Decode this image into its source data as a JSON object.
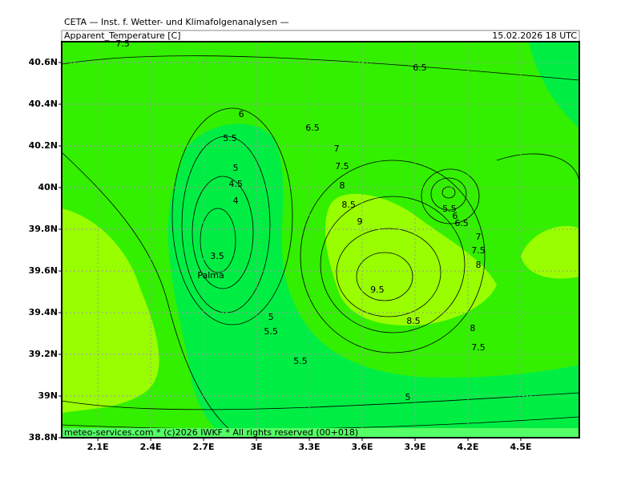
{
  "header": {
    "source": "CETA — Inst. f. Wetter- und Klimafolgenanalysen —",
    "title": "Apparent_Temperature [C]",
    "valid": "15.02.2026 18 UTC"
  },
  "map": {
    "xlim": [
      1.895,
      4.832
    ],
    "ylim": [
      38.8,
      40.7
    ],
    "xticks": [
      {
        "value": 2.1,
        "label": "2.1E"
      },
      {
        "value": 2.4,
        "label": "2.4E"
      },
      {
        "value": 2.7,
        "label": "2.7E"
      },
      {
        "value": 3.0,
        "label": "3E"
      },
      {
        "value": 3.3,
        "label": "3.3E"
      },
      {
        "value": 3.6,
        "label": "3.6E"
      },
      {
        "value": 3.9,
        "label": "3.9E"
      },
      {
        "value": 4.2,
        "label": "4.2E"
      },
      {
        "value": 4.5,
        "label": "4.5E"
      }
    ],
    "yticks": [
      {
        "value": 38.8,
        "label": "38.8N"
      },
      {
        "value": 39.0,
        "label": "39N"
      },
      {
        "value": 39.2,
        "label": "39.2N"
      },
      {
        "value": 39.4,
        "label": "39.4N"
      },
      {
        "value": 39.6,
        "label": "39.6N"
      },
      {
        "value": 39.8,
        "label": "39.8N"
      },
      {
        "value": 40.0,
        "label": "40N"
      },
      {
        "value": 40.2,
        "label": "40.2N"
      },
      {
        "value": 40.4,
        "label": "40.4N"
      },
      {
        "value": 40.6,
        "label": "40.6N"
      }
    ],
    "contour_labels": [
      {
        "text": "7.5",
        "lon": 2.241,
        "lat": 40.688
      },
      {
        "text": "6.5",
        "lon": 3.927,
        "lat": 40.573
      },
      {
        "text": "6",
        "lon": 2.914,
        "lat": 40.35
      },
      {
        "text": "6.5",
        "lon": 3.318,
        "lat": 40.285
      },
      {
        "text": "5.5",
        "lon": 2.85,
        "lat": 40.235
      },
      {
        "text": "7",
        "lon": 3.455,
        "lat": 40.185
      },
      {
        "text": "5",
        "lon": 2.882,
        "lat": 40.092
      },
      {
        "text": "7.5",
        "lon": 3.486,
        "lat": 40.1
      },
      {
        "text": "4.5",
        "lon": 2.882,
        "lat": 40.015
      },
      {
        "text": "8",
        "lon": 3.486,
        "lat": 40.008
      },
      {
        "text": "4",
        "lon": 2.882,
        "lat": 39.935
      },
      {
        "text": "8.5",
        "lon": 3.523,
        "lat": 39.915
      },
      {
        "text": "5.5",
        "lon": 4.095,
        "lat": 39.896
      },
      {
        "text": "6",
        "lon": 4.127,
        "lat": 39.862
      },
      {
        "text": "9",
        "lon": 3.586,
        "lat": 39.835
      },
      {
        "text": "6.5",
        "lon": 4.164,
        "lat": 39.827
      },
      {
        "text": "7",
        "lon": 4.259,
        "lat": 39.762
      },
      {
        "text": "7.5",
        "lon": 4.259,
        "lat": 39.696
      },
      {
        "text": "3.5",
        "lon": 2.777,
        "lat": 39.669
      },
      {
        "text": "8",
        "lon": 4.259,
        "lat": 39.627
      },
      {
        "text": "9.5",
        "lon": 3.686,
        "lat": 39.508
      },
      {
        "text": "5",
        "lon": 3.082,
        "lat": 39.377
      },
      {
        "text": "8.5",
        "lon": 3.891,
        "lat": 39.358
      },
      {
        "text": "5.5",
        "lon": 3.082,
        "lat": 39.308
      },
      {
        "text": "8",
        "lon": 4.227,
        "lat": 39.323
      },
      {
        "text": "7.5",
        "lon": 4.259,
        "lat": 39.231
      },
      {
        "text": "5.5",
        "lon": 3.25,
        "lat": 39.165
      },
      {
        "text": "5",
        "lon": 3.859,
        "lat": 38.992
      }
    ],
    "city": {
      "text": "Palma",
      "lon": 2.741,
      "lat": 39.577
    }
  },
  "footer": "meteo-services.com * (c)2026 IWKF * All rights reserved (00+018)"
}
